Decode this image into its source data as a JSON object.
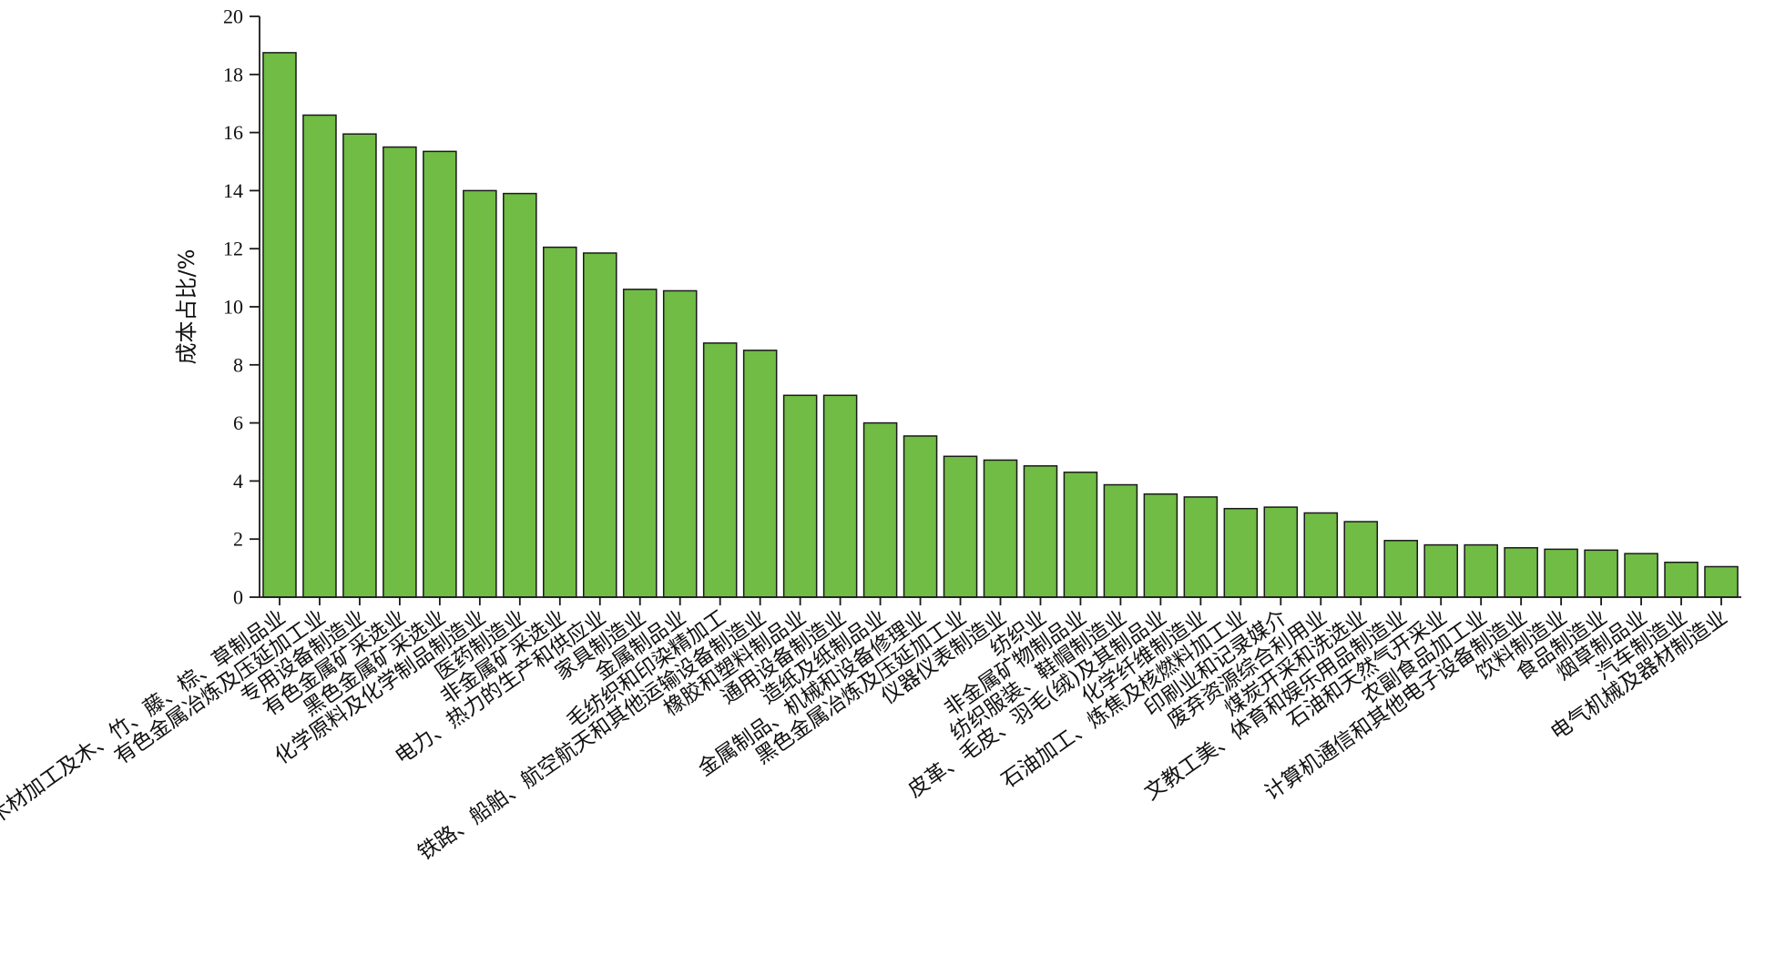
{
  "chart_data": {
    "type": "bar",
    "title": "",
    "xlabel": "",
    "ylabel": "成本占比/%",
    "ylim": [
      0,
      20
    ],
    "yticks": [
      0,
      2,
      4,
      6,
      8,
      10,
      12,
      14,
      16,
      18,
      20
    ],
    "grid": false,
    "legend": "none",
    "bar_color": "#70bc44",
    "categories": [
      "木材加工及木、竹、藤、棕、草制品业",
      "有色金属冶炼及压延加工业",
      "专用设备制造业",
      "有色金属矿采选业",
      "黑色金属矿采选业",
      "化学原料及化学制品制造业",
      "医药制造业",
      "非金属矿采选业",
      "电力、热力的生产和供应业",
      "家具制造业",
      "金属制品业",
      "毛纺织和印染精加工",
      "铁路、船舶、航空航天和其他运输设备制造业",
      "橡胶和塑料制品业",
      "通用设备制造业",
      "造纸及纸制品业",
      "金属制品、机械和设备修理业",
      "黑色金属冶炼及压延加工业",
      "仪器仪表制造业",
      "纺织业",
      "非金属矿物制品业",
      "纺织服装、鞋帽制造业",
      "皮革、毛皮、羽毛(绒)及其制品业",
      "化学纤维制造业",
      "石油加工、炼焦及核燃料加工业",
      "印刷业和记录媒介",
      "废弃资源综合利用业",
      "煤炭开采和洗选业",
      "文教工美、体育和娱乐用品制造业",
      "石油和天然气开采业",
      "农副食品加工业",
      "计算机通信和其他电子设备制造业",
      "饮料制造业",
      "食品制造业",
      "烟草制品业",
      "汽车制造业",
      "电气机械及器材制造业"
    ],
    "values": [
      18.75,
      16.6,
      15.95,
      15.5,
      15.35,
      14.0,
      13.9,
      12.05,
      11.85,
      10.6,
      10.55,
      8.75,
      8.5,
      6.95,
      6.95,
      6.0,
      5.55,
      4.85,
      4.72,
      4.52,
      4.3,
      3.87,
      3.55,
      3.45,
      3.05,
      3.1,
      2.9,
      2.6,
      1.95,
      1.8,
      1.8,
      1.7,
      1.65,
      1.62,
      1.5,
      1.2,
      1.05
    ]
  }
}
